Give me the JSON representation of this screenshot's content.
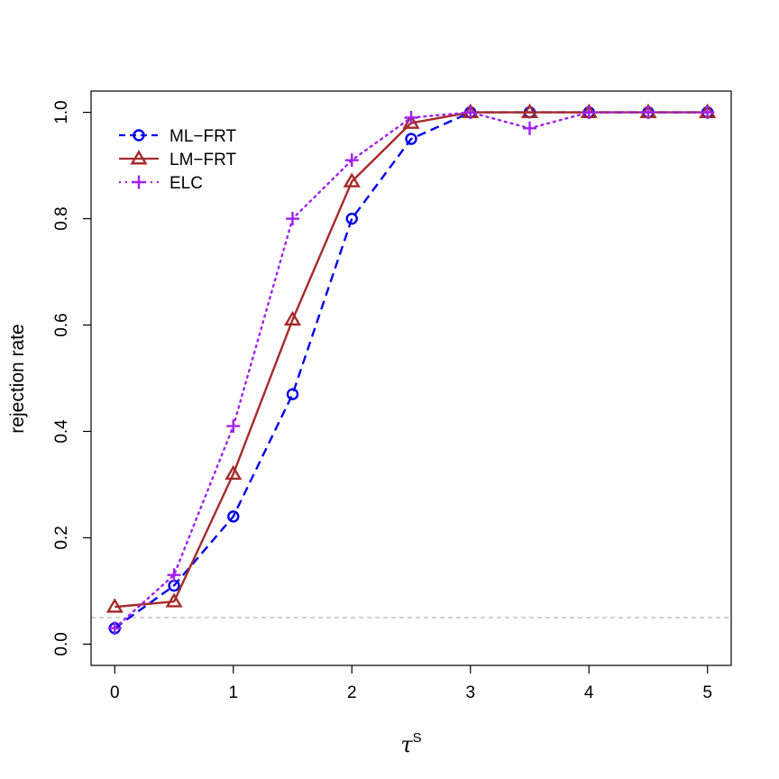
{
  "chart_data": {
    "type": "line",
    "x": [
      0,
      0.5,
      1,
      1.5,
      2,
      2.5,
      3,
      3.5,
      4,
      4.5,
      5
    ],
    "x_ticks": [
      "0",
      "1",
      "2",
      "3",
      "4",
      "5"
    ],
    "y_ticks": [
      "0.0",
      "0.2",
      "0.4",
      "0.6",
      "0.8",
      "1.0"
    ],
    "xlabel_symbol": "τ",
    "xlabel_superscript": "S",
    "ylabel": "rejection rate",
    "xlim": [
      -0.2,
      5.2
    ],
    "ylim": [
      -0.04,
      1.04
    ],
    "reference_line": {
      "y": 0.05,
      "color": "#bebebe",
      "style": "dashed"
    },
    "legend_position": "top-left",
    "series": [
      {
        "name": "ML−FRT",
        "color": "#0000ee",
        "marker": "circle",
        "linestyle": "dashed",
        "values": [
          0.03,
          0.11,
          0.24,
          0.47,
          0.8,
          0.95,
          1.0,
          1.0,
          1.0,
          1.0,
          1.0
        ]
      },
      {
        "name": "LM−FRT",
        "color": "#a52a2a",
        "marker": "triangle",
        "linestyle": "solid",
        "values": [
          0.07,
          0.08,
          0.32,
          0.61,
          0.87,
          0.98,
          1.0,
          1.0,
          1.0,
          1.0,
          1.0
        ]
      },
      {
        "name": "ELC",
        "color": "#a020f0",
        "marker": "plus",
        "linestyle": "dotted",
        "values": [
          0.03,
          0.13,
          0.41,
          0.8,
          0.91,
          0.99,
          1.0,
          0.97,
          1.0,
          1.0,
          1.0
        ]
      }
    ]
  }
}
